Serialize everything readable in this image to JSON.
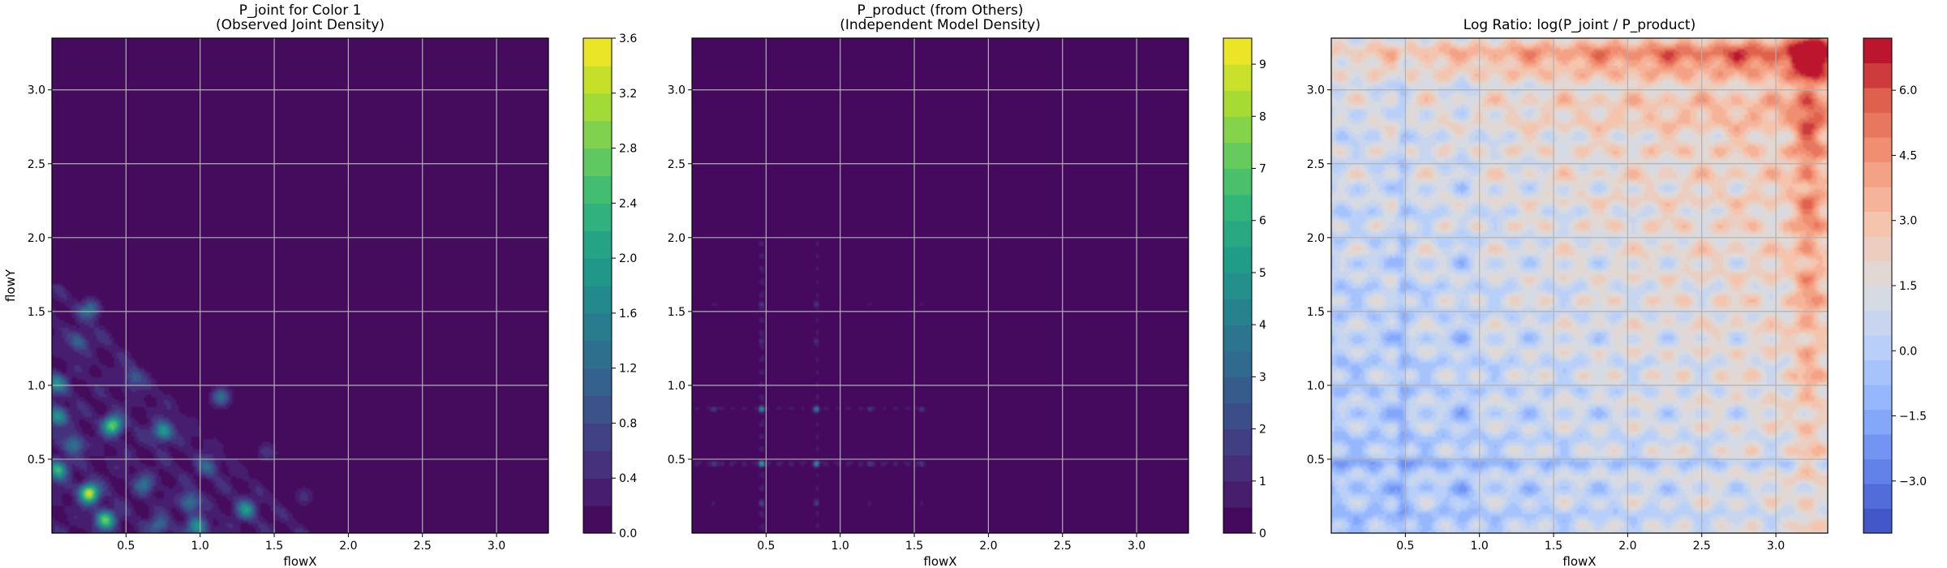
{
  "chart_data": [
    {
      "type": "heatmap",
      "title": "P_joint for Color 1\n(Observed Joint Density)",
      "xlabel": "flowX",
      "ylabel": "flowY",
      "xlim": [
        0.0,
        3.35
      ],
      "ylim": [
        0.0,
        3.35
      ],
      "xticks": [
        0.5,
        1.0,
        1.5,
        2.0,
        2.5,
        3.0
      ],
      "yticks": [
        0.5,
        1.0,
        1.5,
        2.0,
        2.5,
        3.0
      ],
      "grid": true,
      "colormap": "viridis",
      "colorbar": {
        "min": 0.0,
        "max": 3.6,
        "ticks": [
          0.0,
          0.4,
          0.8,
          1.2,
          1.6,
          2.0,
          2.4,
          2.8,
          3.2,
          3.6
        ],
        "tick_labels": [
          "0.0",
          "0.4",
          "0.8",
          "1.2",
          "1.6",
          "2.0",
          "2.4",
          "2.8",
          "3.2",
          "3.6"
        ],
        "levels": 18
      },
      "hotspots": [
        {
          "x": 0.41,
          "y": 0.73,
          "value": 2.6
        },
        {
          "x": 0.25,
          "y": 0.27,
          "value": 3.2
        },
        {
          "x": 0.36,
          "y": 0.09,
          "value": 2.5
        },
        {
          "x": 0.04,
          "y": 0.43,
          "value": 2.1
        },
        {
          "x": 0.04,
          "y": 0.79,
          "value": 1.7
        },
        {
          "x": 0.03,
          "y": 1.01,
          "value": 1.5
        },
        {
          "x": 0.26,
          "y": 1.52,
          "value": 1.3
        },
        {
          "x": 0.75,
          "y": 0.69,
          "value": 1.8
        },
        {
          "x": 0.98,
          "y": 0.04,
          "value": 1.7
        },
        {
          "x": 1.14,
          "y": 0.92,
          "value": 1.3
        },
        {
          "x": 1.31,
          "y": 0.16,
          "value": 1.5
        },
        {
          "x": 0.93,
          "y": 0.21,
          "value": 1.2
        },
        {
          "x": 0.62,
          "y": 0.33,
          "value": 1.0
        },
        {
          "x": 0.18,
          "y": 1.3,
          "value": 0.9
        },
        {
          "x": 0.55,
          "y": 1.05,
          "value": 0.8
        },
        {
          "x": 1.45,
          "y": 0.55,
          "value": 0.6
        },
        {
          "x": 1.7,
          "y": 0.25,
          "value": 0.5
        },
        {
          "x": 0.15,
          "y": 0.6,
          "value": 1.2
        },
        {
          "x": 0.72,
          "y": 0.05,
          "value": 1.1
        },
        {
          "x": 1.05,
          "y": 0.45,
          "value": 0.9
        }
      ]
    },
    {
      "type": "heatmap",
      "title": "P_product (from Others)\n(Independent Model Density)",
      "xlabel": "flowX",
      "ylabel": "",
      "xlim": [
        0.0,
        3.35
      ],
      "ylim": [
        0.0,
        3.35
      ],
      "xticks": [
        0.5,
        1.0,
        1.5,
        2.0,
        2.5,
        3.0
      ],
      "yticks": [
        0.5,
        1.0,
        1.5,
        2.0,
        2.5,
        3.0
      ],
      "grid": true,
      "colormap": "viridis",
      "colorbar": {
        "min": 0.0,
        "max": 9.5,
        "ticks": [
          0,
          1,
          2,
          3,
          4,
          5,
          6,
          7,
          8,
          9
        ],
        "tick_labels": [
          "0",
          "1",
          "2",
          "3",
          "4",
          "5",
          "6",
          "7",
          "8",
          "9"
        ],
        "levels": 19
      },
      "x_bands": [
        {
          "x": 0.47,
          "value": 2.2
        },
        {
          "x": 0.84,
          "value": 1.8
        },
        {
          "x": 0.15,
          "value": 0.6
        },
        {
          "x": 1.55,
          "value": 0.5
        },
        {
          "x": 1.2,
          "value": 0.5
        }
      ],
      "y_bands": [
        {
          "y": 0.47,
          "value": 2.2
        },
        {
          "y": 0.84,
          "value": 1.8
        },
        {
          "y": 1.55,
          "value": 0.5
        },
        {
          "y": 0.2,
          "value": 0.6
        },
        {
          "y": 1.3,
          "value": 0.4
        }
      ],
      "extent": {
        "x": 1.58,
        "y": 1.98
      },
      "peaks": [
        {
          "x": 0.47,
          "y": 0.47,
          "value": 7.2
        },
        {
          "x": 0.84,
          "y": 0.84,
          "value": 6.0
        },
        {
          "x": 0.47,
          "y": 0.84,
          "value": 6.3
        },
        {
          "x": 0.84,
          "y": 0.47,
          "value": 6.3
        }
      ]
    },
    {
      "type": "heatmap",
      "title": "Log Ratio: log(P_joint / P_product)",
      "xlabel": "flowX",
      "ylabel": "",
      "xlim": [
        0.0,
        3.35
      ],
      "ylim": [
        0.0,
        3.35
      ],
      "xticks": [
        0.5,
        1.0,
        1.5,
        2.0,
        2.5,
        3.0
      ],
      "yticks": [
        0.5,
        1.0,
        1.5,
        2.0,
        2.5,
        3.0
      ],
      "grid": true,
      "colormap": "coolwarm",
      "colorbar": {
        "min": -4.2,
        "max": 7.2,
        "ticks": [
          -3.0,
          -1.5,
          0.0,
          1.5,
          3.0,
          4.5,
          6.0
        ],
        "tick_labels": [
          "−3.0",
          "−1.5",
          "0.0",
          "1.5",
          "3.0",
          "4.5",
          "6.0"
        ],
        "levels": 20
      },
      "peak": {
        "x": 3.22,
        "y": 3.22,
        "value": 6.9
      }
    }
  ]
}
